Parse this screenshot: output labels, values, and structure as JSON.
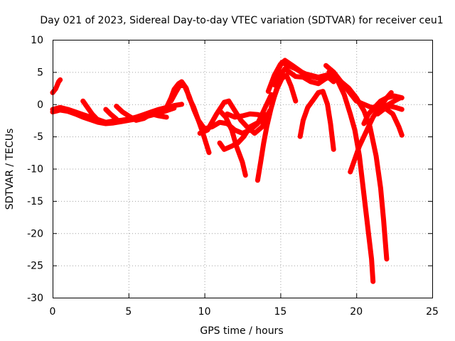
{
  "chart_data": {
    "type": "scatter",
    "title": "Day 021 of 2023, Sidereal Day-to-day VTEC variation (SDTVAR) for receiver ceu1",
    "xlabel": "GPS time / hours",
    "ylabel": "SDTVAR / TECUs",
    "xlim": [
      0,
      25
    ],
    "ylim": [
      -30,
      10
    ],
    "x_ticks": [
      0,
      5,
      10,
      15,
      20,
      25
    ],
    "y_ticks": [
      -30,
      -25,
      -20,
      -15,
      -10,
      -5,
      0,
      5,
      10
    ],
    "x_tick_labels": [
      "0",
      "5",
      "10",
      "15",
      "20",
      "25"
    ],
    "y_tick_labels": [
      "-30",
      "-25",
      "-20",
      "-15",
      "-10",
      "-5",
      "0",
      "5",
      "10"
    ],
    "grid": true,
    "marker": "+",
    "color": "#ff0000",
    "series": [
      {
        "name": "s1",
        "points": [
          [
            0,
            1.8
          ],
          [
            0.2,
            2.4
          ],
          [
            0.4,
            3.5
          ],
          [
            0.5,
            3.8
          ]
        ]
      },
      {
        "name": "s2",
        "points": [
          [
            0,
            -0.8
          ],
          [
            0.5,
            -0.5
          ],
          [
            1,
            -0.8
          ],
          [
            1.5,
            -1.2
          ],
          [
            2,
            -1.6
          ],
          [
            2.5,
            -2
          ],
          [
            3,
            -2.4
          ],
          [
            3.5,
            -2.8
          ],
          [
            4,
            -2.6
          ],
          [
            4.5,
            -2.5
          ],
          [
            5,
            -2.3
          ],
          [
            5.5,
            -2
          ],
          [
            6,
            -1.6
          ],
          [
            6.5,
            -1.2
          ],
          [
            7,
            -0.8
          ],
          [
            7.5,
            -0.5
          ],
          [
            8,
            -0.2
          ],
          [
            8.5,
            0
          ]
        ]
      },
      {
        "name": "s3",
        "points": [
          [
            0,
            -1.2
          ],
          [
            0.5,
            -0.9
          ],
          [
            1,
            -1.1
          ],
          [
            1.5,
            -1.5
          ],
          [
            2,
            -2
          ],
          [
            2.5,
            -2.4
          ],
          [
            3,
            -2.8
          ],
          [
            3.5,
            -3
          ],
          [
            4,
            -2.9
          ],
          [
            4.5,
            -2.7
          ],
          [
            5,
            -2.5
          ],
          [
            5.5,
            -2.3
          ],
          [
            6,
            -2
          ],
          [
            6.5,
            -1.7
          ],
          [
            7,
            -1.4
          ],
          [
            7.5,
            -1
          ],
          [
            8,
            -0.6
          ]
        ]
      },
      {
        "name": "s4",
        "points": [
          [
            2,
            0.5
          ],
          [
            2.3,
            -0.5
          ],
          [
            2.6,
            -1.5
          ],
          [
            3,
            -2.5
          ]
        ]
      },
      {
        "name": "s5",
        "points": [
          [
            3.5,
            -0.8
          ],
          [
            3.8,
            -1.5
          ],
          [
            4.2,
            -2.3
          ]
        ]
      },
      {
        "name": "s6",
        "points": [
          [
            4.2,
            -0.3
          ],
          [
            4.6,
            -1.2
          ],
          [
            5,
            -1.8
          ],
          [
            5.5,
            -2.5
          ],
          [
            6,
            -2.2
          ],
          [
            6.5,
            -1.5
          ],
          [
            7,
            -1.8
          ],
          [
            7.5,
            -2
          ]
        ]
      },
      {
        "name": "s7",
        "points": [
          [
            7.5,
            -0.5
          ],
          [
            7.8,
            1
          ],
          [
            8,
            2.3
          ],
          [
            8.3,
            3.2
          ],
          [
            8.5,
            3.5
          ],
          [
            8.8,
            2.5
          ],
          [
            9,
            1
          ],
          [
            9.3,
            -0.5
          ],
          [
            9.6,
            -2.5
          ],
          [
            9.9,
            -4.5
          ],
          [
            10.1,
            -6
          ],
          [
            10.3,
            -7.5
          ]
        ]
      },
      {
        "name": "s8",
        "points": [
          [
            7.8,
            0.5
          ],
          [
            8.1,
            1.8
          ],
          [
            8.4,
            3
          ],
          [
            8.7,
            2.8
          ],
          [
            9,
            1.2
          ],
          [
            9.3,
            -0.8
          ],
          [
            9.6,
            -2.5
          ],
          [
            10,
            -3.8
          ],
          [
            10.5,
            -3.5
          ],
          [
            11,
            -2.8
          ],
          [
            11.5,
            -3
          ],
          [
            12,
            -4
          ],
          [
            12.5,
            -4.5
          ],
          [
            13,
            -4
          ],
          [
            13.5,
            -3
          ],
          [
            14,
            -0.5
          ],
          [
            14.4,
            1.5
          ]
        ]
      },
      {
        "name": "s9",
        "points": [
          [
            9.7,
            -4.5
          ],
          [
            10.2,
            -4
          ],
          [
            10.8,
            -1.5
          ],
          [
            11.3,
            0.3
          ],
          [
            11.6,
            0.5
          ],
          [
            12,
            -1
          ],
          [
            12.4,
            -2.5
          ],
          [
            12.8,
            -3.5
          ],
          [
            13.3,
            -4.5
          ],
          [
            13.8,
            -3.5
          ],
          [
            14.3,
            -1
          ]
        ]
      },
      {
        "name": "s10",
        "points": [
          [
            11,
            -1
          ],
          [
            11.4,
            -2
          ],
          [
            11.8,
            -4
          ],
          [
            12.1,
            -6.5
          ],
          [
            12.5,
            -9
          ],
          [
            12.7,
            -11
          ]
        ]
      },
      {
        "name": "s11",
        "points": [
          [
            11,
            -6
          ],
          [
            11.3,
            -7
          ],
          [
            11.8,
            -6.5
          ],
          [
            12.2,
            -6
          ],
          [
            12.6,
            -5
          ],
          [
            13,
            -3.5
          ],
          [
            13.4,
            -3
          ],
          [
            13.8,
            -2.5
          ]
        ]
      },
      {
        "name": "s12",
        "points": [
          [
            11.5,
            -1.5
          ],
          [
            12,
            -2
          ],
          [
            12.5,
            -1.8
          ],
          [
            13,
            -1.5
          ],
          [
            13.5,
            -1.6
          ],
          [
            13.9,
            -1.8
          ],
          [
            14.2,
            -1.5
          ]
        ]
      },
      {
        "name": "s13",
        "points": [
          [
            13.5,
            -11.8
          ],
          [
            13.7,
            -9
          ],
          [
            13.9,
            -6
          ],
          [
            14.1,
            -3.5
          ],
          [
            14.3,
            -1.5
          ],
          [
            14.5,
            0.5
          ],
          [
            14.8,
            2.5
          ],
          [
            15.1,
            4
          ],
          [
            15.4,
            4.5
          ],
          [
            15.7,
            2.8
          ],
          [
            16,
            0.5
          ]
        ]
      },
      {
        "name": "s14",
        "points": [
          [
            14.4,
            -0.5
          ],
          [
            14.7,
            2
          ],
          [
            15,
            4.5
          ],
          [
            15.3,
            5.5
          ],
          [
            15.6,
            5
          ],
          [
            16,
            4.3
          ],
          [
            16.5,
            4.2
          ],
          [
            17,
            3.5
          ],
          [
            17.5,
            3.2
          ],
          [
            18,
            4
          ]
        ]
      },
      {
        "name": "s15",
        "points": [
          [
            14.6,
            3
          ],
          [
            14.9,
            5.5
          ],
          [
            15.1,
            6.5
          ],
          [
            15.5,
            6
          ],
          [
            16,
            5.5
          ],
          [
            16.5,
            4.8
          ],
          [
            17,
            4.5
          ],
          [
            17.5,
            4.2
          ],
          [
            18,
            4.5
          ],
          [
            18.5,
            3.5
          ]
        ]
      },
      {
        "name": "s16",
        "points": [
          [
            14.2,
            2
          ],
          [
            14.6,
            4.5
          ],
          [
            15,
            6.2
          ],
          [
            15.3,
            6.8
          ],
          [
            15.8,
            6
          ],
          [
            16.4,
            5
          ],
          [
            17,
            4.3
          ],
          [
            17.6,
            4
          ],
          [
            18.2,
            4.3
          ]
        ]
      },
      {
        "name": "s17",
        "points": [
          [
            16.3,
            -5
          ],
          [
            16.5,
            -2.5
          ],
          [
            16.8,
            -0.5
          ],
          [
            17.2,
            0.8
          ],
          [
            17.5,
            1.8
          ],
          [
            17.8,
            2
          ],
          [
            18.1,
            0
          ],
          [
            18.3,
            -3
          ],
          [
            18.5,
            -7
          ]
        ]
      },
      {
        "name": "s18",
        "points": [
          [
            18,
            6
          ],
          [
            18.5,
            5
          ],
          [
            19,
            3.5
          ],
          [
            19.5,
            2
          ],
          [
            20,
            0.5
          ],
          [
            20.5,
            0
          ],
          [
            21,
            -0.5
          ],
          [
            21.5,
            -0.3
          ],
          [
            22,
            -0.2
          ],
          [
            22.5,
            0.5
          ],
          [
            22.9,
            1
          ]
        ]
      },
      {
        "name": "s19",
        "points": [
          [
            18,
            4
          ],
          [
            18.5,
            4.3
          ],
          [
            18.8,
            3.5
          ],
          [
            19.2,
            1.5
          ],
          [
            19.6,
            -1.5
          ],
          [
            19.9,
            -4
          ],
          [
            20.2,
            -8
          ],
          [
            20.5,
            -14
          ],
          [
            20.8,
            -20
          ],
          [
            21,
            -24
          ],
          [
            21.1,
            -27.5
          ]
        ]
      },
      {
        "name": "s20",
        "points": [
          [
            18.2,
            5
          ],
          [
            18.6,
            4.5
          ],
          [
            19,
            3.5
          ],
          [
            19.5,
            2.5
          ],
          [
            20,
            1
          ],
          [
            20.5,
            -1
          ],
          [
            20.9,
            -3.5
          ],
          [
            21.3,
            -8
          ],
          [
            21.6,
            -13
          ],
          [
            21.8,
            -18
          ],
          [
            22,
            -24
          ]
        ]
      },
      {
        "name": "s21",
        "points": [
          [
            19.6,
            -10.5
          ],
          [
            19.9,
            -8.5
          ],
          [
            20.2,
            -6.5
          ],
          [
            20.5,
            -5
          ],
          [
            20.8,
            -3.5
          ],
          [
            21.1,
            -2
          ],
          [
            21.4,
            -1
          ],
          [
            21.7,
            0
          ],
          [
            22,
            1
          ],
          [
            22.3,
            1.8
          ]
        ]
      },
      {
        "name": "s22",
        "points": [
          [
            20.5,
            -3
          ],
          [
            20.8,
            -1.5
          ],
          [
            21.2,
            -0.5
          ],
          [
            21.6,
            0.5
          ],
          [
            22,
            1
          ],
          [
            22.5,
            1.3
          ],
          [
            23,
            1
          ]
        ]
      },
      {
        "name": "s23",
        "points": [
          [
            21.4,
            -1.5
          ],
          [
            21.8,
            -0.8
          ],
          [
            22.2,
            -0.3
          ],
          [
            22.6,
            -0.5
          ],
          [
            23,
            -0.8
          ]
        ]
      },
      {
        "name": "s24",
        "points": [
          [
            21.6,
            -0.5
          ],
          [
            22,
            -0.8
          ],
          [
            22.4,
            -1.5
          ],
          [
            22.8,
            -3.5
          ],
          [
            23,
            -4.8
          ]
        ]
      }
    ]
  }
}
